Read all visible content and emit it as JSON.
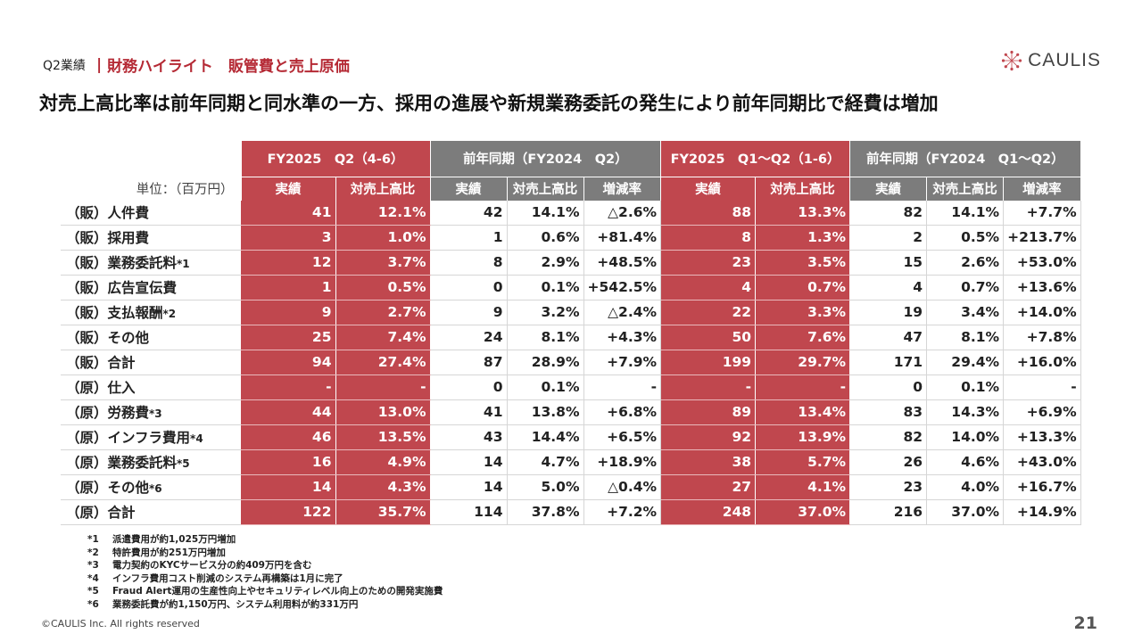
{
  "header": {
    "section": "Q2業績",
    "separator": "|",
    "heading": "財務ハイライト　販管費と売上原価"
  },
  "logo": {
    "text": "CAULIS"
  },
  "title": "対売上高比率は前年同期と同水準の一方、採用の進展や新規業務委託の発生により前年同期比で経費は増加",
  "table": {
    "unit_label": "単位：（百万円）",
    "groups": [
      "FY2025　Q2（4-6）",
      "前年同期（FY2024　Q2）",
      "FY2025　Q1～Q2（1-6）",
      "前年同期（FY2024　Q1～Q2）"
    ],
    "subheaders": [
      "実績",
      "対売上高比",
      "実績",
      "対売上高比",
      "増減率",
      "実績",
      "対売上高比",
      "実績",
      "対売上高比",
      "増減率"
    ],
    "rows": [
      {
        "label": "（販）人件費",
        "note": "",
        "values": [
          "41",
          "12.1%",
          "42",
          "14.1%",
          "△2.6%",
          "88",
          "13.3%",
          "82",
          "14.1%",
          "+7.7%"
        ]
      },
      {
        "label": "（販）採用費",
        "note": "",
        "values": [
          "3",
          "1.0%",
          "1",
          "0.6%",
          "+81.4%",
          "8",
          "1.3%",
          "2",
          "0.5%",
          "+213.7%"
        ]
      },
      {
        "label": "（販）業務委託料",
        "note": "*1",
        "values": [
          "12",
          "3.7%",
          "8",
          "2.9%",
          "+48.5%",
          "23",
          "3.5%",
          "15",
          "2.6%",
          "+53.0%"
        ]
      },
      {
        "label": "（販）広告宣伝費",
        "note": "",
        "values": [
          "1",
          "0.5%",
          "0",
          "0.1%",
          "+542.5%",
          "4",
          "0.7%",
          "4",
          "0.7%",
          "+13.6%"
        ]
      },
      {
        "label": "（販）支払報酬",
        "note": "*2",
        "values": [
          "9",
          "2.7%",
          "9",
          "3.2%",
          "△2.4%",
          "22",
          "3.3%",
          "19",
          "3.4%",
          "+14.0%"
        ]
      },
      {
        "label": "（販）その他",
        "note": "",
        "values": [
          "25",
          "7.4%",
          "24",
          "8.1%",
          "+4.3%",
          "50",
          "7.6%",
          "47",
          "8.1%",
          "+7.8%"
        ]
      },
      {
        "label": "（販）合計",
        "note": "",
        "values": [
          "94",
          "27.4%",
          "87",
          "28.9%",
          "+7.9%",
          "199",
          "29.7%",
          "171",
          "29.4%",
          "+16.0%"
        ]
      },
      {
        "label": "（原）仕入",
        "note": "",
        "values": [
          "-",
          "-",
          "0",
          "0.1%",
          "-",
          "-",
          "-",
          "0",
          "0.1%",
          "-"
        ]
      },
      {
        "label": "（原）労務費",
        "note": "*3",
        "values": [
          "44",
          "13.0%",
          "41",
          "13.8%",
          "+6.8%",
          "89",
          "13.4%",
          "83",
          "14.3%",
          "+6.9%"
        ]
      },
      {
        "label": "（原）インフラ費用",
        "note": "*4",
        "values": [
          "46",
          "13.5%",
          "43",
          "14.4%",
          "+6.5%",
          "92",
          "13.9%",
          "82",
          "14.0%",
          "+13.3%"
        ]
      },
      {
        "label": "（原）業務委託料",
        "note": "*5",
        "values": [
          "16",
          "4.9%",
          "14",
          "4.7%",
          "+18.9%",
          "38",
          "5.7%",
          "26",
          "4.6%",
          "+43.0%"
        ]
      },
      {
        "label": "（原）その他",
        "note": "*6",
        "values": [
          "14",
          "4.3%",
          "14",
          "5.0%",
          "△0.4%",
          "27",
          "4.1%",
          "23",
          "4.0%",
          "+16.7%"
        ]
      },
      {
        "label": "（原）合計",
        "note": "",
        "values": [
          "122",
          "35.7%",
          "114",
          "37.8%",
          "+7.2%",
          "248",
          "37.0%",
          "216",
          "37.0%",
          "+14.9%"
        ]
      }
    ]
  },
  "notes": [
    {
      "mark": "*1",
      "text": "派遣費用が約1,025万円増加"
    },
    {
      "mark": "*2",
      "text": "特許費用が約251万円増加"
    },
    {
      "mark": "*3",
      "text": "電力契約のKYCサービス分の約409万円を含む"
    },
    {
      "mark": "*4",
      "text": "インフラ費用コスト削減のシステム再構築は1月に完了"
    },
    {
      "mark": "*5",
      "text": "Fraud Alert運用の生産性向上やセキュリティレベル向上のための開発実施費"
    },
    {
      "mark": "*6",
      "text": "業務委託費が約1,150万円、システム利用料が約331万円"
    }
  ],
  "footer": {
    "copyright": "©CAULIS Inc. All rights reserved",
    "page": "21"
  },
  "colors": {
    "accent": "#c0474e",
    "heading": "#b52a35",
    "gray_header": "#7c7c7c"
  }
}
